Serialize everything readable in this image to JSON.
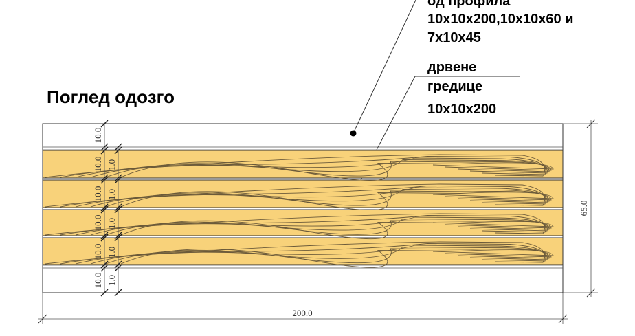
{
  "title": "Поглед одозго",
  "labels": {
    "steel_line1": "од  профила",
    "steel_line2": "10x10x200,10x10x60 и",
    "steel_line3": "7x10x45",
    "wood_line1": "дрвене",
    "wood_line2": "гредице",
    "wood_line3": "10x10x200"
  },
  "dimensions": {
    "width": "200.0",
    "height": "65.0",
    "vertical": [
      "10.0",
      "10.0",
      "10.0",
      "10.0",
      "10.0",
      "10.0"
    ],
    "gaps": [
      "1.0",
      "1.0",
      "1.0",
      "1.0",
      "1.0"
    ]
  },
  "colors": {
    "wood": "#f8d27a",
    "line": "#333333"
  }
}
